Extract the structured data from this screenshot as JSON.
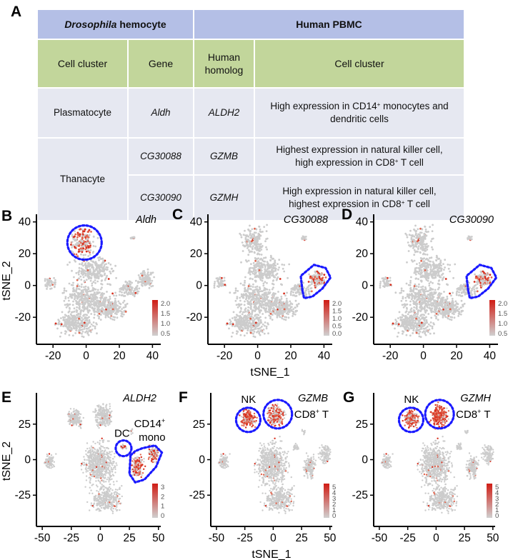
{
  "figure": {
    "panel_letters": [
      "A",
      "B",
      "C",
      "D",
      "E",
      "F",
      "G"
    ],
    "table": {
      "group_headers": [
        {
          "label_italic": "Drosophila",
          "label_rest": " hemocyte"
        },
        {
          "label": "Human PBMC"
        }
      ],
      "column_headers": [
        "Cell cluster",
        "Gene",
        "Human homolog",
        "Cell cluster"
      ],
      "column_headers_lines": [
        [
          "Cell cluster"
        ],
        [
          "Gene"
        ],
        [
          "Human",
          "homolog"
        ],
        [
          "Cell cluster"
        ]
      ],
      "rows": [
        {
          "cell_cluster": "Plasmatocyte",
          "gene": "Aldh",
          "homolog": "ALDH2",
          "human_cluster_parts": [
            "High expression in CD14",
            "+",
            " monocytes and",
            "dendritic cells"
          ]
        },
        {
          "cell_cluster": "Thanacyte",
          "gene": "CG30088",
          "homolog": "GZMB",
          "human_cluster_parts": [
            "Highest expression in natural killer cell,",
            "high expression in CD8",
            "+",
            " T cell"
          ]
        },
        {
          "cell_cluster": "Thanacyte",
          "gene": "CG30090",
          "homolog": "GZMH",
          "human_cluster_parts": [
            "High expression in natural killer cell,",
            "highest expression in CD8",
            "+",
            " T cell"
          ]
        }
      ]
    }
  },
  "chart_data": [
    {
      "panel": "B",
      "type": "scatter",
      "gene": "Aldh",
      "organism": "Drosophila hemocyte",
      "xlabel": "",
      "ylabel": "tSNE_2",
      "xlim": [
        -30,
        45
      ],
      "ylim": [
        -37,
        43
      ],
      "xticks": [
        -20,
        0,
        20,
        40
      ],
      "yticks": [
        -20,
        0,
        20,
        40
      ],
      "legend": {
        "position": "bottom-right",
        "ticks": [
          "2.0",
          "1.5",
          "1.0",
          "0.5"
        ],
        "range": [
          0.5,
          2.1
        ]
      },
      "highlight": [
        {
          "shape": "circle",
          "center": [
            -1,
            27
          ],
          "label": ""
        }
      ],
      "expressed_region": "Plasmatocyte cluster (top, around tSNE_1≈-5..5, tSNE_2≈20..38)"
    },
    {
      "panel": "C",
      "type": "scatter",
      "gene": "CG30088",
      "organism": "Drosophila hemocyte",
      "xlabel": "tSNE_1",
      "ylabel": "",
      "xlim": [
        -30,
        45
      ],
      "ylim": [
        -37,
        43
      ],
      "xticks": [
        -20,
        0,
        20,
        40
      ],
      "yticks": [
        -20,
        0,
        20,
        40
      ],
      "legend": {
        "position": "bottom-right",
        "ticks": [
          "2.0",
          "1.5",
          "1.0",
          "0.5",
          "0.0"
        ],
        "range": [
          0,
          2.1
        ]
      },
      "highlight": [
        {
          "shape": "blob",
          "center": [
            35,
            2
          ],
          "label": ""
        }
      ],
      "expressed_region": "Thanacyte cluster (right, tSNE_1≈27..43, tSNE_2≈-8..12)"
    },
    {
      "panel": "D",
      "type": "scatter",
      "gene": "CG30090",
      "organism": "Drosophila hemocyte",
      "xlabel": "",
      "ylabel": "",
      "xlim": [
        -30,
        45
      ],
      "ylim": [
        -37,
        43
      ],
      "xticks": [
        -20,
        0,
        20,
        40
      ],
      "yticks": [
        -20,
        0,
        20,
        40
      ],
      "legend": {
        "position": "bottom-right",
        "ticks": [
          "2.0",
          "1.5",
          "1.0",
          "0.5"
        ],
        "range": [
          0.4,
          2.1
        ]
      },
      "highlight": [
        {
          "shape": "blob",
          "center": [
            35,
            2
          ],
          "label": ""
        }
      ],
      "expressed_region": "Thanacyte cluster (right, tSNE_1≈27..43, tSNE_2≈-8..12)"
    },
    {
      "panel": "E",
      "type": "scatter",
      "gene": "ALDH2",
      "organism": "Human PBMC",
      "xlabel": "",
      "ylabel": "tSNE_2",
      "xlim": [
        -55,
        52
      ],
      "ylim": [
        -47,
        45
      ],
      "xticks": [
        -50,
        -25,
        0,
        25,
        50
      ],
      "yticks": [
        -25,
        0,
        25
      ],
      "legend": {
        "position": "bottom-right",
        "ticks": [
          "3",
          "2",
          "1",
          "0"
        ],
        "range": [
          0,
          3.3
        ]
      },
      "highlight": [
        {
          "shape": "circle",
          "center": [
            20,
            8
          ],
          "label": "DC"
        },
        {
          "shape": "blob",
          "center": [
            38,
            0
          ],
          "label_parts": [
            "CD14",
            "+",
            "",
            "mono"
          ]
        }
      ]
    },
    {
      "panel": "F",
      "type": "scatter",
      "gene": "GZMB",
      "organism": "Human PBMC",
      "xlabel": "tSNE_1",
      "ylabel": "",
      "xlim": [
        -55,
        52
      ],
      "ylim": [
        -47,
        45
      ],
      "xticks": [
        -50,
        -25,
        0,
        25,
        50
      ],
      "yticks": [
        -25,
        0,
        25
      ],
      "legend": {
        "position": "bottom-right",
        "ticks": [
          "5",
          "4",
          "3",
          "2",
          "1",
          "0"
        ],
        "range": [
          0,
          5.3
        ]
      },
      "highlight": [
        {
          "shape": "circle",
          "center": [
            -22,
            28
          ],
          "label": "NK"
        },
        {
          "shape": "circle",
          "center": [
            4,
            32
          ],
          "label_parts": [
            "CD8",
            "+",
            " T"
          ]
        }
      ]
    },
    {
      "panel": "G",
      "type": "scatter",
      "gene": "GZMH",
      "organism": "Human PBMC",
      "xlabel": "",
      "ylabel": "",
      "xlim": [
        -55,
        52
      ],
      "ylim": [
        -47,
        45
      ],
      "xticks": [
        -50,
        -25,
        0,
        25,
        50
      ],
      "yticks": [
        -25,
        0,
        25
      ],
      "legend": {
        "position": "bottom-right",
        "ticks": [
          "5",
          "4",
          "3",
          "2",
          "1",
          "0"
        ],
        "range": [
          0,
          5.3
        ]
      },
      "highlight": [
        {
          "shape": "circle",
          "center": [
            -22,
            28
          ],
          "label": "NK"
        },
        {
          "shape": "circle",
          "center": [
            3,
            32
          ],
          "label_parts": [
            "CD8",
            "+",
            " T"
          ]
        }
      ]
    }
  ],
  "colors": {
    "header_blue": "#b4bfe6",
    "header_green": "#c2d69b",
    "body_gray": "#e6e8f1",
    "cell_gray": "#cccccc",
    "expr_red": "#d8301f",
    "highlight_blue": "#1a1aff"
  }
}
